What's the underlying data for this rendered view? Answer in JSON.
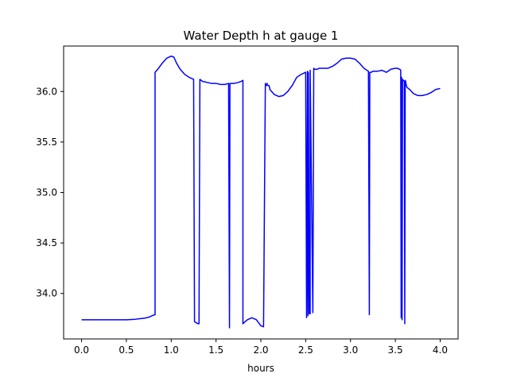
{
  "chart_data": {
    "type": "line",
    "title": "Water Depth h at gauge 1",
    "xlabel": "hours",
    "ylabel": "",
    "xlim": [
      -0.2,
      4.2
    ],
    "ylim": [
      33.55,
      36.45
    ],
    "xticks": [
      0.0,
      0.5,
      1.0,
      1.5,
      2.0,
      2.5,
      3.0,
      3.5,
      4.0
    ],
    "xtick_labels": [
      "0.0",
      "0.5",
      "1.0",
      "1.5",
      "2.0",
      "2.5",
      "3.0",
      "3.5",
      "4.0"
    ],
    "yticks": [
      34.0,
      34.5,
      35.0,
      35.5,
      36.0
    ],
    "ytick_labels": [
      "34.0",
      "34.5",
      "35.0",
      "35.5",
      "36.0"
    ],
    "grid": false,
    "colors": {
      "line": "#0000ff",
      "frame": "#000000",
      "background": "#ffffff"
    },
    "series": [
      {
        "x": [
          0.0,
          0.2,
          0.4,
          0.5,
          0.6,
          0.7,
          0.75,
          0.8,
          0.82,
          0.82,
          0.85,
          0.9,
          0.95,
          1.0,
          1.03,
          1.06,
          1.1,
          1.15,
          1.2,
          1.25,
          1.26,
          1.26,
          1.3,
          1.31,
          1.32,
          1.35,
          1.4,
          1.45,
          1.5,
          1.55,
          1.6,
          1.64,
          1.65,
          1.655,
          1.66,
          1.67,
          1.7,
          1.75,
          1.78,
          1.8,
          1.8,
          1.81,
          1.85,
          1.9,
          1.95,
          2.0,
          2.03,
          2.05,
          2.06,
          2.07,
          2.07,
          2.09,
          2.1,
          2.1,
          2.12,
          2.15,
          2.2,
          2.25,
          2.3,
          2.35,
          2.4,
          2.45,
          2.5,
          2.51,
          2.52,
          2.525,
          2.53,
          2.54,
          2.55,
          2.55,
          2.58,
          2.59,
          2.6,
          2.61,
          2.63,
          2.65,
          2.7,
          2.75,
          2.8,
          2.85,
          2.9,
          2.95,
          3.0,
          3.05,
          3.1,
          3.15,
          3.2,
          3.21,
          3.215,
          3.22,
          3.23,
          3.25,
          3.3,
          3.35,
          3.4,
          3.45,
          3.5,
          3.52,
          3.55,
          3.56,
          3.565,
          3.57,
          3.575,
          3.58,
          3.6,
          3.605,
          3.61,
          3.615,
          3.62,
          3.63,
          3.66,
          3.7,
          3.75,
          3.8,
          3.85,
          3.9,
          3.95,
          4.0
        ],
        "y": [
          33.74,
          33.74,
          33.74,
          33.74,
          33.745,
          33.755,
          33.765,
          33.785,
          33.79,
          36.19,
          36.22,
          36.28,
          36.33,
          36.35,
          36.34,
          36.28,
          36.22,
          36.17,
          36.14,
          36.12,
          33.72,
          33.72,
          33.7,
          33.7,
          36.12,
          36.1,
          36.09,
          36.08,
          36.08,
          36.07,
          36.07,
          36.08,
          33.66,
          36.08,
          36.08,
          36.08,
          36.08,
          36.09,
          36.1,
          36.11,
          33.7,
          33.71,
          33.74,
          33.76,
          33.74,
          33.68,
          33.67,
          36.08,
          36.06,
          36.08,
          36.06,
          36.06,
          36.03,
          36.02,
          36.0,
          35.97,
          35.95,
          35.96,
          36.0,
          36.06,
          36.14,
          36.17,
          36.19,
          33.76,
          36.2,
          33.78,
          36.19,
          33.8,
          33.8,
          36.21,
          33.81,
          36.23,
          36.22,
          36.22,
          36.22,
          36.23,
          36.23,
          36.23,
          36.25,
          36.28,
          36.32,
          36.33,
          36.33,
          36.32,
          36.28,
          36.23,
          36.2,
          33.79,
          36.19,
          36.19,
          36.19,
          36.2,
          36.2,
          36.21,
          36.19,
          36.22,
          36.23,
          36.23,
          36.22,
          36.21,
          33.76,
          36.14,
          33.74,
          36.12,
          36.1,
          33.7,
          36.11,
          36.1,
          36.07,
          36.04,
          36.02,
          35.98,
          35.96,
          35.96,
          35.97,
          35.99,
          36.02,
          36.03
        ]
      }
    ]
  }
}
